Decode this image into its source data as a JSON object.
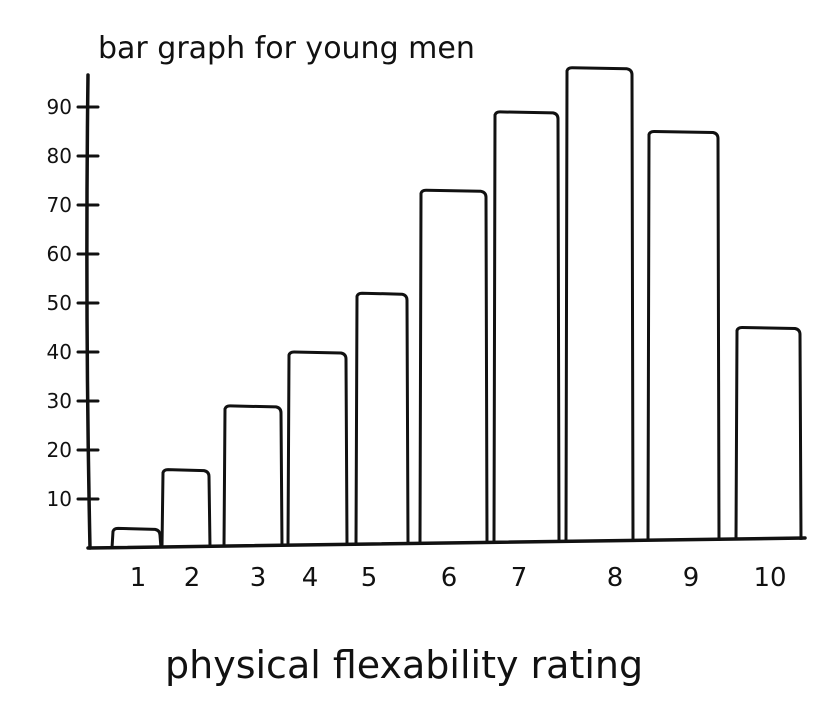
{
  "chart_data": {
    "type": "bar",
    "title": "bar graph for young men",
    "xlabel": "physical flexability rating",
    "ylabel": "",
    "categories": [
      "1",
      "2",
      "3",
      "4",
      "5",
      "6",
      "7",
      "8",
      "9",
      "10"
    ],
    "values": [
      4,
      16,
      29,
      40,
      52,
      73,
      89,
      98,
      85,
      45
    ],
    "yticks": [
      10,
      20,
      30,
      40,
      50,
      60,
      70,
      80,
      90
    ],
    "ylim": [
      0,
      100
    ],
    "grid": false
  }
}
